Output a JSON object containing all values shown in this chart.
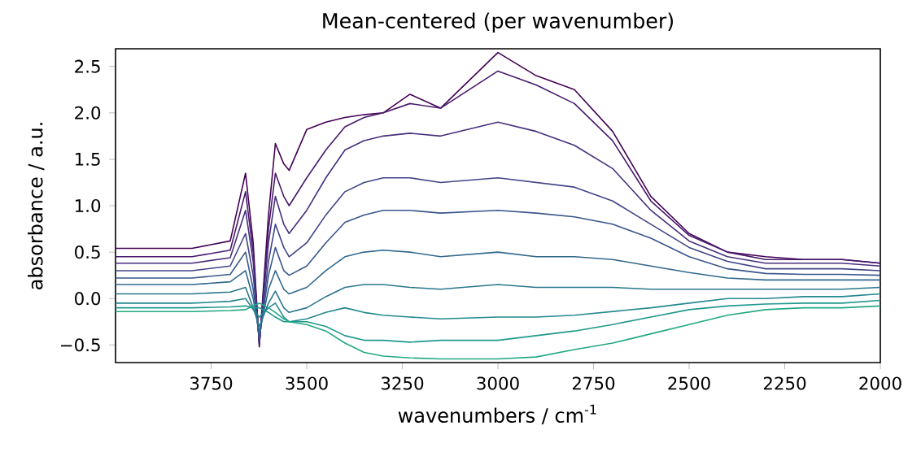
{
  "chart_data": {
    "type": "line",
    "title": "Mean-centered (per wavenumber)",
    "xlabel": "wavenumbers / cm$^{-1}$",
    "ylabel": "absorbance / a.u.",
    "x": [
      4000,
      3800,
      3700,
      3660,
      3640,
      3624,
      3600,
      3582,
      3560,
      3546,
      3500,
      3450,
      3400,
      3350,
      3300,
      3230,
      3150,
      3000,
      2900,
      2800,
      2700,
      2600,
      2500,
      2400,
      2300,
      2200,
      2100,
      2000
    ],
    "xlim": [
      4000,
      2000
    ],
    "ylim": [
      -0.69,
      2.69
    ],
    "xticks": [
      3750,
      3500,
      3250,
      3000,
      2750,
      2500,
      2250,
      2000
    ],
    "yticks": [
      {
        "value": -0.5,
        "label": "−0.5"
      },
      {
        "value": 0,
        "label": "0.0"
      },
      0.5,
      {
        "value": 1,
        "label": "1.0"
      },
      1.5,
      {
        "value": 2,
        "label": "2.0"
      },
      2.5
    ],
    "series": [
      {
        "color": "#440154",
        "values": [
          0.54,
          0.54,
          0.62,
          1.35,
          0.6,
          -0.52,
          0.9,
          1.67,
          1.45,
          1.38,
          1.82,
          1.9,
          1.95,
          1.98,
          2.0,
          2.2,
          2.05,
          2.65,
          2.4,
          2.25,
          1.8,
          1.1,
          0.7,
          0.5,
          0.45,
          0.42,
          0.42,
          0.38
        ]
      },
      {
        "color": "#481a6c",
        "values": [
          0.45,
          0.45,
          0.52,
          1.15,
          0.5,
          -0.5,
          0.75,
          1.35,
          1.1,
          1.0,
          1.3,
          1.6,
          1.85,
          1.95,
          2.0,
          2.1,
          2.05,
          2.45,
          2.3,
          2.1,
          1.7,
          1.05,
          0.68,
          0.5,
          0.42,
          0.42,
          0.42,
          0.38
        ]
      },
      {
        "color": "#472f7d",
        "values": [
          0.38,
          0.38,
          0.44,
          0.95,
          0.4,
          -0.48,
          0.6,
          1.1,
          0.8,
          0.7,
          0.95,
          1.3,
          1.6,
          1.7,
          1.75,
          1.78,
          1.75,
          1.9,
          1.8,
          1.65,
          1.4,
          0.95,
          0.62,
          0.45,
          0.38,
          0.38,
          0.38,
          0.35
        ]
      },
      {
        "color": "#414487",
        "values": [
          0.3,
          0.3,
          0.35,
          0.7,
          0.25,
          -0.45,
          0.4,
          0.8,
          0.55,
          0.45,
          0.6,
          0.9,
          1.15,
          1.25,
          1.3,
          1.3,
          1.25,
          1.3,
          1.25,
          1.2,
          1.05,
          0.8,
          0.55,
          0.4,
          0.32,
          0.32,
          0.32,
          0.3
        ]
      },
      {
        "color": "#39568c",
        "values": [
          0.22,
          0.22,
          0.26,
          0.5,
          0.1,
          -0.42,
          0.25,
          0.55,
          0.3,
          0.25,
          0.35,
          0.6,
          0.82,
          0.9,
          0.95,
          0.95,
          0.92,
          0.95,
          0.92,
          0.88,
          0.8,
          0.65,
          0.45,
          0.32,
          0.27,
          0.26,
          0.26,
          0.25
        ]
      },
      {
        "color": "#31688e",
        "values": [
          0.15,
          0.15,
          0.18,
          0.3,
          0.0,
          -0.38,
          0.1,
          0.3,
          0.1,
          0.05,
          0.12,
          0.3,
          0.45,
          0.5,
          0.52,
          0.5,
          0.45,
          0.5,
          0.45,
          0.45,
          0.42,
          0.35,
          0.28,
          0.22,
          0.2,
          0.2,
          0.2,
          0.2
        ]
      },
      {
        "color": "#2a788e",
        "values": [
          0.05,
          0.05,
          0.07,
          0.12,
          -0.1,
          -0.3,
          -0.05,
          0.08,
          -0.1,
          -0.15,
          -0.1,
          0.02,
          0.12,
          0.15,
          0.15,
          0.12,
          0.1,
          0.15,
          0.12,
          0.12,
          0.12,
          0.1,
          0.1,
          0.1,
          0.1,
          0.1,
          0.1,
          0.12
        ]
      },
      {
        "color": "#23888e",
        "values": [
          -0.05,
          -0.05,
          -0.03,
          0.0,
          -0.12,
          -0.2,
          -0.1,
          -0.05,
          -0.2,
          -0.25,
          -0.22,
          -0.15,
          -0.1,
          -0.15,
          -0.18,
          -0.2,
          -0.22,
          -0.2,
          -0.2,
          -0.18,
          -0.14,
          -0.1,
          -0.05,
          0.0,
          0.0,
          0.02,
          0.02,
          0.05
        ]
      },
      {
        "color": "#1f988b",
        "values": [
          -0.1,
          -0.1,
          -0.09,
          -0.08,
          -0.1,
          -0.1,
          -0.15,
          -0.2,
          -0.25,
          -0.25,
          -0.25,
          -0.3,
          -0.4,
          -0.45,
          -0.45,
          -0.47,
          -0.45,
          -0.45,
          -0.4,
          -0.35,
          -0.28,
          -0.2,
          -0.12,
          -0.08,
          -0.06,
          -0.05,
          -0.05,
          -0.02
        ]
      },
      {
        "color": "#22a884",
        "values": [
          -0.14,
          -0.14,
          -0.13,
          -0.12,
          -0.08,
          -0.05,
          -0.1,
          -0.15,
          -0.22,
          -0.25,
          -0.28,
          -0.35,
          -0.48,
          -0.58,
          -0.62,
          -0.64,
          -0.65,
          -0.65,
          -0.63,
          -0.55,
          -0.48,
          -0.38,
          -0.28,
          -0.18,
          -0.12,
          -0.1,
          -0.1,
          -0.08
        ]
      }
    ]
  }
}
